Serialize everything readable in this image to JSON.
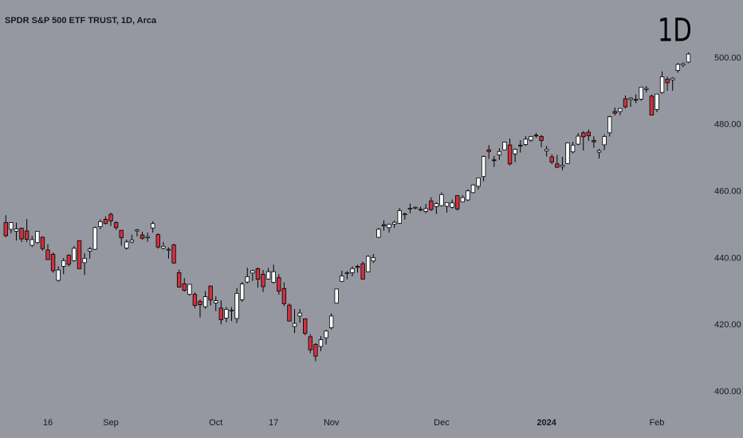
{
  "chart_data": {
    "type": "candlestick",
    "title": "SPDR S&P 500 ETF TRUST, 1D, Arca",
    "watermark": "1D",
    "categories": [
      null,
      null,
      null,
      null,
      null,
      null,
      null,
      null,
      "16",
      null,
      null,
      null,
      null,
      null,
      null,
      null,
      null,
      null,
      null,
      null,
      "Sep",
      null,
      null,
      null,
      null,
      null,
      null,
      null,
      null,
      null,
      null,
      null,
      null,
      null,
      null,
      null,
      null,
      null,
      null,
      null,
      "Oct",
      null,
      null,
      null,
      null,
      null,
      null,
      null,
      null,
      null,
      null,
      "17",
      null,
      null,
      null,
      null,
      null,
      null,
      null,
      null,
      null,
      null,
      "Nov",
      null,
      null,
      null,
      null,
      null,
      null,
      null,
      null,
      null,
      null,
      null,
      null,
      null,
      null,
      null,
      null,
      null,
      null,
      null,
      null,
      "Dec",
      null,
      null,
      null,
      null,
      null,
      null,
      null,
      null,
      null,
      null,
      null,
      null,
      null,
      null,
      null,
      null,
      null,
      null,
      null,
      "2024",
      null,
      null,
      null,
      null,
      null,
      null,
      null,
      null,
      null,
      null,
      null,
      null,
      null,
      null,
      null,
      null,
      null,
      null,
      null,
      null,
      "Feb",
      null,
      null,
      null,
      null,
      null,
      null
    ],
    "open": [
      450.7,
      448.7,
      448.1,
      449.0,
      448.2,
      443.9,
      444.7,
      446.3,
      442.5,
      441.2,
      433.4,
      437.6,
      440.9,
      439.3,
      445.3,
      438.7,
      442.2,
      442.7,
      449.5,
      451.7,
      453.2,
      450.7,
      448.4,
      443.1,
      444.9,
      448.2,
      447.0,
      446.2,
      449.1,
      447.1,
      443.0,
      442.7,
      444.0,
      435.7,
      432.4,
      429.2,
      429.2,
      427.1,
      425.5,
      431.7,
      426.6,
      425.1,
      422.1,
      424.4,
      421.97,
      427.6,
      432.9,
      435.6,
      436.9,
      435.2,
      433.8,
      432.8,
      434.2,
      430.95,
      425.98,
      419.6,
      422.7,
      421.9,
      416.5,
      414.2,
      413.6,
      416.2,
      419.2,
      426.6,
      433.1,
      435.5,
      435.7,
      437.6,
      438.4,
      435.98,
      439.2,
      446.3,
      450.1,
      449.2,
      450.2,
      450.5,
      453.2,
      454.98,
      455.1,
      454.7,
      454.1,
      457.2,
      455.5,
      455.8,
      455.6,
      455.3,
      458.8,
      456.9,
      457.5,
      459.7,
      461.6,
      464.5,
      472.5,
      469.5,
      470.98,
      472.5,
      473.96,
      471.3,
      473.9,
      474.1,
      475.4,
      476.9,
      476.5,
      472.2,
      470.4,
      468.3,
      467.5,
      468.4,
      471.9,
      474.2,
      477.6,
      477.8,
      475.3,
      471.8,
      474.0,
      477.6,
      484.0,
      484.0,
      487.8,
      487.6,
      487.6,
      487.7,
      490.6,
      488.6,
      484.6,
      489.7,
      493.7,
      493.5,
      496.3,
      497.9,
      498.8
    ],
    "high": [
      452.9,
      450.9,
      450.7,
      449.2,
      451.8,
      446.7,
      448.1,
      446.6,
      444.2,
      441.8,
      437.6,
      440.1,
      441.2,
      443.7,
      445.4,
      441.5,
      443.4,
      449.5,
      451.7,
      452.6,
      453.7,
      451.1,
      448.5,
      445.6,
      447.1,
      448.8,
      448.0,
      447.7,
      451.1,
      447.5,
      444.9,
      443.3,
      444.4,
      436.6,
      434.1,
      432.3,
      429.8,
      427.7,
      430.2,
      431.9,
      428.6,
      427.4,
      425.4,
      425.4,
      431.1,
      432.9,
      437.2,
      436.6,
      437.3,
      436.5,
      437.1,
      438.1,
      435.2,
      432.8,
      426.5,
      424.8,
      424.8,
      421.9,
      417.3,
      414.6,
      416.7,
      418.5,
      423.5,
      430.9,
      436.3,
      436.2,
      437.6,
      438.1,
      439.0,
      440.9,
      441.3,
      449.1,
      451.4,
      450.3,
      451.3,
      455.1,
      453.7,
      456.4,
      455.5,
      455.5,
      456.3,
      458.3,
      456.8,
      459.7,
      456.5,
      457.6,
      458.8,
      458.9,
      460.7,
      462.2,
      464.2,
      470.8,
      473.9,
      470.7,
      472.98,
      474.9,
      475.9,
      472.98,
      475.4,
      476.6,
      476.7,
      477.6,
      477.0,
      473.7,
      471.2,
      470.96,
      470.4,
      474.8,
      474.9,
      477.5,
      478.1,
      478.6,
      476.6,
      472.8,
      477.1,
      482.7,
      485.2,
      485.1,
      488.8,
      488.3,
      489.1,
      491.4,
      491.6,
      489.1,
      489.2,
      496.0,
      494.4,
      494.3,
      498.5,
      498.7,
      501.7
    ],
    "low": [
      446.3,
      447.5,
      445.3,
      444.9,
      444.9,
      443.4,
      444.4,
      442.3,
      439.6,
      435.7,
      433.0,
      435.3,
      437.6,
      439.0,
      436.9,
      435.0,
      439.9,
      442.5,
      448.7,
      450.2,
      449.7,
      448.5,
      443.8,
      442.6,
      444.5,
      446.6,
      445.6,
      445.0,
      447.7,
      442.9,
      442.6,
      439.9,
      438.4,
      431.2,
      429.99,
      428.8,
      425.0,
      422.3,
      424.9,
      425.9,
      424.2,
      420.2,
      420.9,
      421.2,
      420.6,
      427.0,
      432.5,
      433.2,
      431.2,
      429.9,
      433.6,
      432.4,
      429.1,
      425.7,
      421.1,
      417.6,
      420.7,
      417.0,
      411.6,
      409.2,
      412.2,
      414.2,
      418.7,
      426.6,
      433.0,
      433.7,
      434.6,
      435.7,
      433.6,
      435.8,
      438.6,
      446.1,
      448.3,
      447.7,
      449.1,
      450.3,
      451.6,
      453.5,
      454.7,
      454.1,
      453.5,
      454.2,
      453.3,
      455.5,
      453.7,
      454.9,
      454.3,
      456.8,
      457.2,
      459.5,
      460.6,
      463.1,
      469.8,
      467.4,
      469.5,
      472.5,
      467.8,
      468.8,
      471.7,
      473.7,
      474.9,
      476.1,
      473.3,
      470.5,
      468.2,
      467.0,
      466.4,
      468.3,
      471.4,
      473.9,
      472.3,
      475.2,
      473.1,
      469.9,
      472.4,
      476.5,
      482.8,
      482.9,
      484.9,
      485.4,
      486.5,
      487.2,
      489.7,
      482.9,
      483.8,
      489.3,
      490.2,
      490.2,
      495.6,
      497.3,
      498.5
    ],
    "close": [
      446.8,
      450.7,
      448.8,
      445.8,
      445.7,
      445.6,
      448.1,
      442.9,
      439.6,
      436.3,
      436.5,
      439.3,
      438.2,
      443.0,
      436.9,
      440.0,
      442.8,
      449.2,
      451.0,
      450.4,
      451.2,
      449.2,
      446.2,
      444.9,
      445.5,
      448.5,
      446.0,
      446.5,
      450.4,
      443.4,
      443.6,
      442.7,
      438.6,
      431.4,
      430.4,
      432.2,
      425.9,
      426.1,
      428.5,
      427.5,
      427.3,
      421.6,
      424.7,
      424.5,
      429.5,
      432.3,
      434.5,
      436.3,
      433.7,
      431.5,
      436.0,
      436.0,
      430.2,
      426.4,
      421.2,
      420.5,
      423.6,
      417.5,
      412.6,
      410.7,
      415.6,
      418.2,
      422.7,
      430.8,
      434.7,
      435.7,
      436.9,
      437.3,
      433.8,
      440.6,
      440.2,
      448.7,
      449.7,
      450.2,
      450.8,
      454.3,
      453.3,
      455.0,
      455.3,
      454.5,
      454.9,
      454.6,
      456.4,
      459.1,
      456.7,
      456.6,
      454.8,
      458.2,
      460.2,
      462.0,
      464.1,
      470.5,
      472.0,
      469.3,
      472.0,
      474.8,
      468.3,
      472.7,
      473.7,
      475.7,
      476.5,
      476.7,
      475.3,
      472.7,
      468.8,
      467.3,
      467.9,
      474.6,
      473.9,
      476.6,
      476.4,
      476.7,
      474.9,
      472.3,
      476.5,
      482.4,
      483.5,
      484.9,
      485.4,
      488.0,
      487.4,
      491.3,
      490.9,
      482.9,
      489.2,
      494.4,
      492.6,
      493.98,
      498.1,
      498.3,
      501.2
    ],
    "up_color": "#ffffff",
    "down_color": "#d0313f",
    "wick_color": "#000000",
    "ylim": [
      393.8,
      517.4
    ],
    "yticks": [
      {
        "value": 400,
        "label": "400.00"
      },
      {
        "value": 420,
        "label": "420.00"
      },
      {
        "value": 440,
        "label": "440.00"
      },
      {
        "value": 460,
        "label": "460.00"
      },
      {
        "value": 480,
        "label": "480.00"
      },
      {
        "value": 500,
        "label": "500.00"
      }
    ],
    "grid": false
  }
}
